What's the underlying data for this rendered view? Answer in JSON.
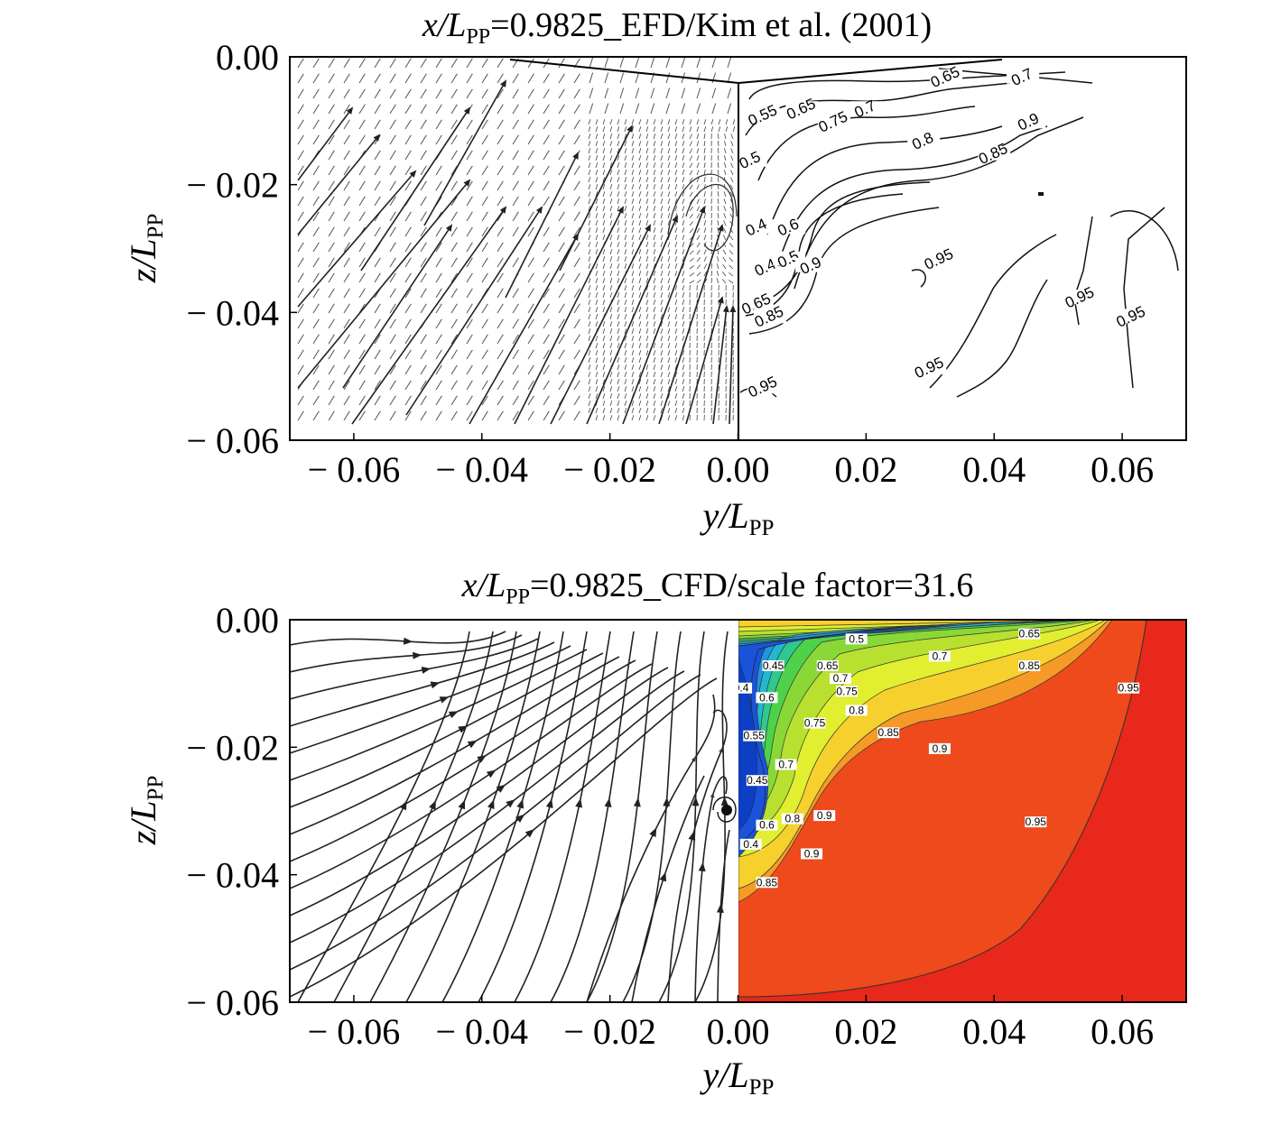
{
  "chart_data": [
    {
      "type": "contour",
      "title": "x/L_PP=0.9825_EFD/Kim et al. (2001)",
      "title_parts": {
        "x": "x/",
        "L": "L",
        "sub": "PP",
        "rest": "=0.9825_EFD/Kim et al. (2001)"
      },
      "xlabel": {
        "var": "y/",
        "L": "L",
        "sub": "PP"
      },
      "ylabel": {
        "var": "z/",
        "L": "L",
        "sub": "PP"
      },
      "xlim": [
        -0.07,
        0.07
      ],
      "ylim": [
        -0.06,
        0.0
      ],
      "x_ticks": [
        -0.06,
        -0.04,
        -0.02,
        0.0,
        0.02,
        0.04,
        0.06
      ],
      "x_tick_labels": [
        "− 0.06",
        "− 0.04",
        "− 0.02",
        "0.00",
        "0.02",
        "0.04",
        "0.06"
      ],
      "y_ticks": [
        0.0,
        -0.02,
        -0.04,
        -0.06
      ],
      "y_tick_labels": [
        "0.00",
        "− 0.02",
        "− 0.04",
        "− 0.06"
      ],
      "left_half": "velocity vectors",
      "right_half": "axial velocity contours",
      "contour_labels": [
        {
          "text": "0.65",
          "y": 0.0325,
          "z": -0.0035
        },
        {
          "text": "0.7",
          "y": 0.0445,
          "z": -0.0035
        },
        {
          "text": "0.65",
          "y": 0.01,
          "z": -0.0085
        },
        {
          "text": "0.7",
          "y": 0.02,
          "z": -0.0085
        },
        {
          "text": "0.75",
          "y": 0.015,
          "z": -0.0105
        },
        {
          "text": "0.55",
          "y": 0.004,
          "z": -0.0095
        },
        {
          "text": "0.8",
          "y": 0.029,
          "z": -0.0135
        },
        {
          "text": "0.85",
          "y": 0.04,
          "z": -0.0155
        },
        {
          "text": "0.9",
          "y": 0.0455,
          "z": -0.0105
        },
        {
          "text": "0.5",
          "y": 0.002,
          "z": -0.0165
        },
        {
          "text": "0.4",
          "y": 0.003,
          "z": -0.027
        },
        {
          "text": "0.6",
          "y": 0.008,
          "z": -0.027
        },
        {
          "text": "0.45",
          "y": 0.005,
          "z": -0.033
        },
        {
          "text": "0.5",
          "y": 0.008,
          "z": -0.032
        },
        {
          "text": "0.9",
          "y": 0.0115,
          "z": -0.033
        },
        {
          "text": "0.65",
          "y": 0.003,
          "z": -0.039
        },
        {
          "text": "0.85",
          "y": 0.005,
          "z": -0.041
        },
        {
          "text": "0.95",
          "y": 0.0315,
          "z": -0.032
        },
        {
          "text": "0.95",
          "y": 0.0535,
          "z": -0.038
        },
        {
          "text": "0.95",
          "y": 0.0615,
          "z": -0.041
        },
        {
          "text": "0.95",
          "y": 0.03,
          "z": -0.049
        },
        {
          "text": "0.95",
          "y": 0.004,
          "z": -0.052
        }
      ]
    },
    {
      "type": "contour",
      "title": "x/L_PP=0.9825_CFD/scale factor=31.6",
      "title_parts": {
        "x": "x/",
        "L": "L",
        "sub": "PP",
        "rest": "=0.9825_CFD/scale factor=31.6"
      },
      "xlabel": {
        "var": "y/",
        "L": "L",
        "sub": "PP"
      },
      "ylabel": {
        "var": "z/",
        "L": "L",
        "sub": "PP"
      },
      "xlim": [
        -0.07,
        0.07
      ],
      "ylim": [
        -0.06,
        0.0
      ],
      "x_ticks": [
        -0.06,
        -0.04,
        -0.02,
        0.0,
        0.02,
        0.04,
        0.06
      ],
      "x_tick_labels": [
        "− 0.06",
        "− 0.04",
        "− 0.02",
        "0.00",
        "0.02",
        "0.04",
        "0.06"
      ],
      "y_ticks": [
        0.0,
        -0.02,
        -0.04,
        -0.06
      ],
      "y_tick_labels": [
        "0.00",
        "− 0.02",
        "− 0.04",
        "− 0.06"
      ],
      "left_half": "streamlines",
      "right_half": "filled axial velocity contours",
      "contour_levels": [
        0.4,
        0.45,
        0.5,
        0.55,
        0.6,
        0.65,
        0.7,
        0.75,
        0.8,
        0.85,
        0.9,
        0.95
      ],
      "level_colors": [
        "#1a52d8",
        "#2196e0",
        "#22b8d0",
        "#30c890",
        "#4ed24a",
        "#8ad838",
        "#b8e030",
        "#e2ee30",
        "#f6d02c",
        "#f59a26",
        "#ef4a1c",
        "#e8281a"
      ],
      "contour_labels": [
        {
          "text": "0.5",
          "y": 0.0185,
          "z": -0.0033
        },
        {
          "text": "0.65",
          "y": 0.0455,
          "z": -0.0025
        },
        {
          "text": "0.7",
          "y": 0.0315,
          "z": -0.006
        },
        {
          "text": "0.85",
          "y": 0.0455,
          "z": -0.0075
        },
        {
          "text": "0.95",
          "y": 0.061,
          "z": -0.011
        },
        {
          "text": "0.45",
          "y": 0.0055,
          "z": -0.0075
        },
        {
          "text": "0.65",
          "y": 0.014,
          "z": -0.0075
        },
        {
          "text": "0.7",
          "y": 0.016,
          "z": -0.0095
        },
        {
          "text": "0.75",
          "y": 0.017,
          "z": -0.0115
        },
        {
          "text": "0.8",
          "y": 0.0185,
          "z": -0.0145
        },
        {
          "text": "0.85",
          "y": 0.0235,
          "z": -0.018
        },
        {
          "text": "0.9",
          "y": 0.0315,
          "z": -0.0205
        },
        {
          "text": "0.4",
          "y": 0.0005,
          "z": -0.011
        },
        {
          "text": "0.6",
          "y": 0.0045,
          "z": -0.0125
        },
        {
          "text": "0.55",
          "y": 0.0025,
          "z": -0.0185
        },
        {
          "text": "0.7",
          "y": 0.0075,
          "z": -0.023
        },
        {
          "text": "0.45",
          "y": 0.003,
          "z": -0.0255
        },
        {
          "text": "0.75",
          "y": 0.012,
          "z": -0.0165
        },
        {
          "text": "0.8",
          "y": 0.0085,
          "z": -0.0315
        },
        {
          "text": "0.9",
          "y": 0.0135,
          "z": -0.031
        },
        {
          "text": "0.6",
          "y": 0.0045,
          "z": -0.0325
        },
        {
          "text": "0.4",
          "y": 0.002,
          "z": -0.0355
        },
        {
          "text": "0.9",
          "y": 0.0115,
          "z": -0.037
        },
        {
          "text": "0.85",
          "y": 0.0045,
          "z": -0.0415
        },
        {
          "text": "0.95",
          "y": 0.0465,
          "z": -0.032
        }
      ]
    }
  ]
}
